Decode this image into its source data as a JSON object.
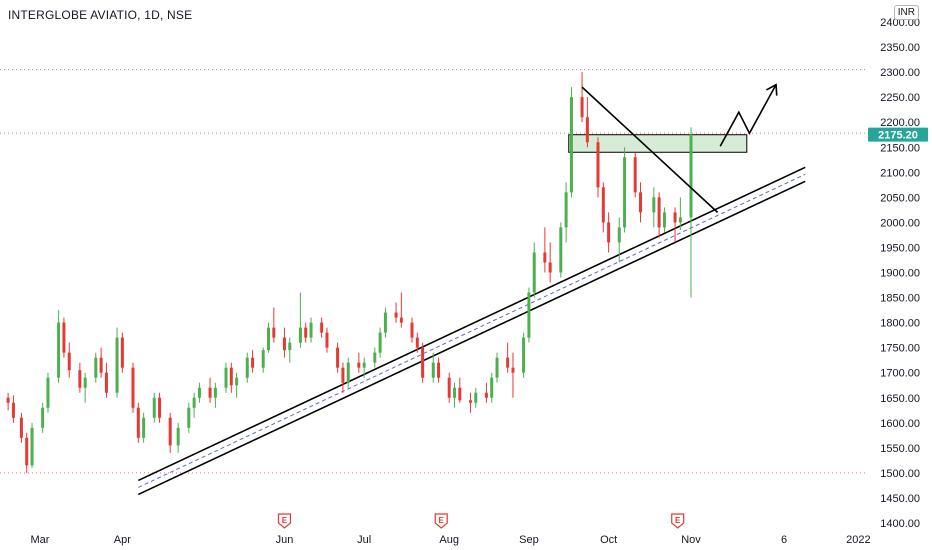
{
  "header": {
    "title": "INTERGLOBE AVIATIO, 1D, NSE",
    "currency": "INR"
  },
  "price_badge": {
    "value": "2175.20",
    "color": "#26a69a"
  },
  "event_markers": [
    {
      "label": "E",
      "date": "2021-06-01"
    },
    {
      "label": "E",
      "date": "2021-07-30"
    },
    {
      "label": "E",
      "date": "2021-10-27"
    }
  ],
  "colors": {
    "up": "#4caf50",
    "down": "#e53935",
    "zone": "#c8e6c9",
    "hline": "#e57373"
  },
  "chart_data": {
    "type": "candlestick",
    "title": "INTERGLOBE AVIATIO, 1D, NSE",
    "ylabel": "INR",
    "xlabel": "",
    "ylim": [
      1390,
      2430
    ],
    "y_ticks": [
      2400,
      2350,
      2300,
      2250,
      2200,
      2150,
      2100,
      2050,
      2000,
      1950,
      1900,
      1850,
      1800,
      1750,
      1700,
      1650,
      1600,
      1550,
      1500,
      1450,
      1400
    ],
    "x_ticks": [
      {
        "label": "Mar",
        "date": "2021-03-01"
      },
      {
        "label": "Apr",
        "date": "2021-04-01"
      },
      {
        "label": "Jun",
        "date": "2021-06-01"
      },
      {
        "label": "Jul",
        "date": "2021-07-01"
      },
      {
        "label": "Aug",
        "date": "2021-08-02"
      },
      {
        "label": "Sep",
        "date": "2021-09-01"
      },
      {
        "label": "Oct",
        "date": "2021-10-01"
      },
      {
        "label": "Nov",
        "date": "2021-11-01"
      },
      {
        "label": "6",
        "date": "2021-12-06"
      },
      {
        "label": "2022",
        "date": "2022-01-03"
      }
    ],
    "horizontal_lines": [
      2305,
      2178,
      1500
    ],
    "last_price": 2175.2,
    "resistance_zone": {
      "from": "2021-09-16",
      "to": "2021-11-22",
      "low": 2140,
      "high": 2175
    },
    "channel_lines": [
      {
        "from": [
          "2021-04-07",
          1485
        ],
        "to": [
          "2021-12-14",
          2110
        ]
      },
      {
        "from": [
          "2021-04-07",
          1457
        ],
        "to": [
          "2021-12-14",
          2082
        ]
      }
    ],
    "midline": {
      "from": [
        "2021-04-07",
        1471
      ],
      "to": [
        "2021-12-14",
        2096
      ]
    },
    "descending_trendline": {
      "from": [
        "2021-09-21",
        2270
      ],
      "to": [
        "2021-11-11",
        2020
      ]
    },
    "projection_path": [
      [
        "2021-11-12",
        2152
      ],
      [
        "2021-11-19",
        2220
      ],
      [
        "2021-11-23",
        2178
      ],
      [
        "2021-12-03",
        2275
      ]
    ],
    "candles": [
      [
        "2021-02-17",
        1650,
        1660,
        1625,
        1640
      ],
      [
        "2021-02-19",
        1640,
        1655,
        1600,
        1610
      ],
      [
        "2021-02-22",
        1610,
        1620,
        1560,
        1570
      ],
      [
        "2021-02-24",
        1570,
        1580,
        1500,
        1515
      ],
      [
        "2021-02-26",
        1515,
        1600,
        1510,
        1590
      ],
      [
        "2021-03-02",
        1590,
        1640,
        1580,
        1630
      ],
      [
        "2021-03-04",
        1630,
        1700,
        1620,
        1690
      ],
      [
        "2021-03-08",
        1690,
        1825,
        1680,
        1800
      ],
      [
        "2021-03-10",
        1800,
        1810,
        1730,
        1740
      ],
      [
        "2021-03-12",
        1740,
        1760,
        1690,
        1705
      ],
      [
        "2021-03-16",
        1705,
        1720,
        1660,
        1670
      ],
      [
        "2021-03-18",
        1670,
        1700,
        1640,
        1690
      ],
      [
        "2021-03-22",
        1690,
        1740,
        1680,
        1730
      ],
      [
        "2021-03-24",
        1730,
        1750,
        1690,
        1700
      ],
      [
        "2021-03-26",
        1700,
        1720,
        1650,
        1660
      ],
      [
        "2021-03-30",
        1660,
        1790,
        1650,
        1770
      ],
      [
        "2021-04-01",
        1770,
        1780,
        1700,
        1710
      ],
      [
        "2021-04-05",
        1710,
        1720,
        1620,
        1630
      ],
      [
        "2021-04-07",
        1630,
        1640,
        1560,
        1570
      ],
      [
        "2021-04-09",
        1570,
        1620,
        1560,
        1610
      ],
      [
        "2021-04-13",
        1610,
        1660,
        1600,
        1650
      ],
      [
        "2021-04-15",
        1650,
        1660,
        1600,
        1610
      ],
      [
        "2021-04-19",
        1610,
        1620,
        1540,
        1555
      ],
      [
        "2021-04-22",
        1555,
        1600,
        1540,
        1590
      ],
      [
        "2021-04-26",
        1590,
        1640,
        1580,
        1630
      ],
      [
        "2021-04-28",
        1630,
        1660,
        1610,
        1650
      ],
      [
        "2021-04-30",
        1650,
        1680,
        1640,
        1670
      ],
      [
        "2021-05-04",
        1670,
        1690,
        1640,
        1650
      ],
      [
        "2021-05-06",
        1650,
        1680,
        1630,
        1670
      ],
      [
        "2021-05-10",
        1670,
        1720,
        1660,
        1710
      ],
      [
        "2021-05-12",
        1710,
        1720,
        1660,
        1675
      ],
      [
        "2021-05-14",
        1675,
        1700,
        1650,
        1690
      ],
      [
        "2021-05-18",
        1690,
        1740,
        1680,
        1730
      ],
      [
        "2021-05-20",
        1730,
        1745,
        1700,
        1710
      ],
      [
        "2021-05-24",
        1710,
        1750,
        1700,
        1745
      ],
      [
        "2021-05-26",
        1745,
        1800,
        1740,
        1790
      ],
      [
        "2021-05-28",
        1790,
        1830,
        1760,
        1770
      ],
      [
        "2021-06-01",
        1770,
        1790,
        1730,
        1745
      ],
      [
        "2021-06-03",
        1745,
        1770,
        1720,
        1760
      ],
      [
        "2021-06-07",
        1760,
        1860,
        1750,
        1790
      ],
      [
        "2021-06-09",
        1790,
        1800,
        1760,
        1770
      ],
      [
        "2021-06-11",
        1770,
        1810,
        1760,
        1800
      ],
      [
        "2021-06-15",
        1800,
        1810,
        1770,
        1780
      ],
      [
        "2021-06-17",
        1780,
        1790,
        1740,
        1750
      ],
      [
        "2021-06-21",
        1750,
        1760,
        1700,
        1710
      ],
      [
        "2021-06-23",
        1710,
        1720,
        1660,
        1680
      ],
      [
        "2021-06-25",
        1680,
        1730,
        1670,
        1720
      ],
      [
        "2021-06-29",
        1720,
        1740,
        1700,
        1710
      ],
      [
        "2021-07-01",
        1710,
        1730,
        1690,
        1720
      ],
      [
        "2021-07-05",
        1720,
        1750,
        1710,
        1740
      ],
      [
        "2021-07-07",
        1740,
        1790,
        1730,
        1780
      ],
      [
        "2021-07-09",
        1780,
        1830,
        1770,
        1820
      ],
      [
        "2021-07-13",
        1820,
        1840,
        1800,
        1810
      ],
      [
        "2021-07-15",
        1810,
        1860,
        1790,
        1800
      ],
      [
        "2021-07-19",
        1800,
        1810,
        1760,
        1770
      ],
      [
        "2021-07-21",
        1770,
        1780,
        1740,
        1750
      ],
      [
        "2021-07-23",
        1750,
        1760,
        1680,
        1690
      ],
      [
        "2021-07-27",
        1690,
        1740,
        1680,
        1720
      ],
      [
        "2021-07-29",
        1720,
        1730,
        1680,
        1690
      ],
      [
        "2021-08-02",
        1690,
        1700,
        1640,
        1650
      ],
      [
        "2021-08-04",
        1650,
        1680,
        1630,
        1670
      ],
      [
        "2021-08-06",
        1670,
        1690,
        1640,
        1645
      ],
      [
        "2021-08-10",
        1645,
        1660,
        1620,
        1640
      ],
      [
        "2021-08-12",
        1640,
        1670,
        1630,
        1660
      ],
      [
        "2021-08-16",
        1660,
        1680,
        1640,
        1650
      ],
      [
        "2021-08-18",
        1650,
        1700,
        1640,
        1690
      ],
      [
        "2021-08-20",
        1690,
        1740,
        1680,
        1730
      ],
      [
        "2021-08-24",
        1730,
        1760,
        1700,
        1710
      ],
      [
        "2021-08-26",
        1710,
        1740,
        1650,
        1700
      ],
      [
        "2021-08-30",
        1700,
        1780,
        1690,
        1770
      ],
      [
        "2021-09-01",
        1770,
        1870,
        1760,
        1860
      ],
      [
        "2021-09-03",
        1860,
        1960,
        1850,
        1940
      ],
      [
        "2021-09-07",
        1940,
        1990,
        1900,
        1920
      ],
      [
        "2021-09-09",
        1920,
        1960,
        1880,
        1900
      ],
      [
        "2021-09-13",
        1900,
        2000,
        1890,
        1990
      ],
      [
        "2021-09-15",
        1990,
        2080,
        1960,
        2060
      ],
      [
        "2021-09-17",
        2060,
        2270,
        2050,
        2250
      ],
      [
        "2021-09-21",
        2250,
        2300,
        2200,
        2210
      ],
      [
        "2021-09-23",
        2210,
        2250,
        2150,
        2160
      ],
      [
        "2021-09-27",
        2160,
        2170,
        2050,
        2070
      ],
      [
        "2021-09-29",
        2070,
        2080,
        1980,
        2000
      ],
      [
        "2021-10-01",
        2000,
        2020,
        1940,
        1960
      ],
      [
        "2021-10-05",
        1960,
        2010,
        1920,
        1990
      ],
      [
        "2021-10-07",
        1990,
        2150,
        1980,
        2130
      ],
      [
        "2021-10-11",
        2130,
        2140,
        2050,
        2060
      ],
      [
        "2021-10-13",
        2060,
        2080,
        2000,
        2020
      ],
      [
        "2021-10-18",
        2020,
        2070,
        1990,
        2050
      ],
      [
        "2021-10-20",
        2050,
        2060,
        1970,
        1990
      ],
      [
        "2021-10-22",
        1990,
        2030,
        1980,
        2020
      ],
      [
        "2021-10-26",
        2020,
        2030,
        1960,
        2000
      ],
      [
        "2021-10-28",
        2000,
        2050,
        1985,
        2010
      ],
      [
        "2021-11-01",
        2010,
        2190,
        1850,
        2175.2
      ]
    ]
  }
}
